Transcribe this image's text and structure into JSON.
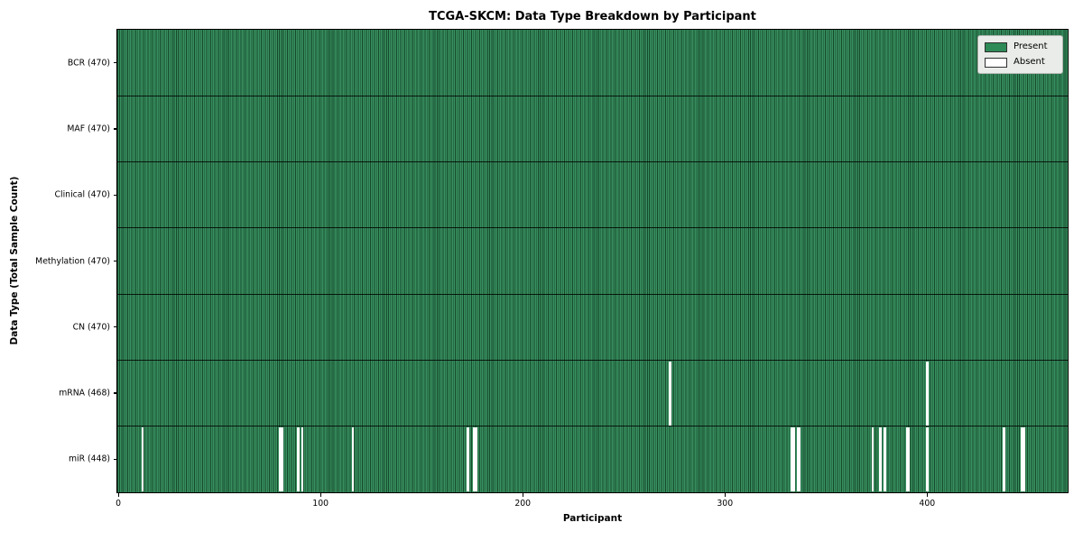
{
  "legend": {
    "present_label": "Present",
    "absent_label": "Absent"
  },
  "colors": {
    "present": "#2e8b57",
    "present_stripe_light": "#38905f",
    "bar_edge": "#16492c",
    "absent": "#ffffff",
    "legend_bg": "#e9ece9",
    "row_divider": "rgba(0,0,0,0.82)"
  },
  "chart_data": {
    "type": "heatmap",
    "title": "TCGA-SKCM: Data Type Breakdown by Participant",
    "xlabel": "Participant",
    "ylabel": "Data Type (Total Sample Count)",
    "legend": [
      "Present",
      "Absent"
    ],
    "legend_position": "upper right",
    "n_participants": 470,
    "x_ticks": [
      0,
      100,
      200,
      300,
      400
    ],
    "grid": false,
    "rows": [
      {
        "label": "BCR (470)",
        "data_type": "BCR",
        "present_count": 470,
        "absent_participants": []
      },
      {
        "label": "MAF (470)",
        "data_type": "MAF",
        "present_count": 470,
        "absent_participants": []
      },
      {
        "label": "Clinical (470)",
        "data_type": "Clinical",
        "present_count": 470,
        "absent_participants": []
      },
      {
        "label": "Methylation (470)",
        "data_type": "Methylation",
        "present_count": 470,
        "absent_participants": []
      },
      {
        "label": "CN (470)",
        "data_type": "CN",
        "present_count": 470,
        "absent_participants": []
      },
      {
        "label": "mRNA (468)",
        "data_type": "mRNA",
        "present_count": 468,
        "absent_participants": [
          273,
          400
        ]
      },
      {
        "label": "miR (448)",
        "data_type": "miR",
        "present_count": 448,
        "absent_participants": [
          12,
          80,
          81,
          89,
          91,
          116,
          173,
          176,
          177,
          333,
          334,
          336,
          337,
          373,
          377,
          379,
          390,
          391,
          400,
          438,
          447,
          448
        ]
      }
    ]
  }
}
